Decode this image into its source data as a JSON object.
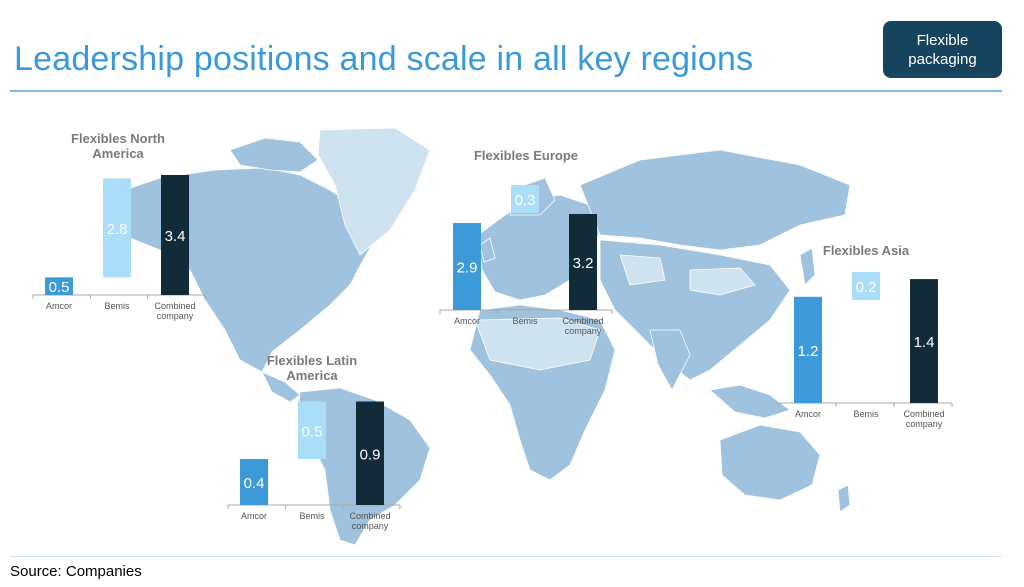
{
  "header": {
    "title": "Leadership positions and scale in all key regions",
    "tag": "Flexible\npackaging"
  },
  "footer": {
    "source": "Source: Companies"
  },
  "colors": {
    "amcor": "#3d9ad8",
    "bemis": "#a9ddf8",
    "combined": "#112b38",
    "map_land": "#9fc2de",
    "map_light": "#cfe2f0",
    "title": "#3a9ad9"
  },
  "chart_data": [
    {
      "type": "bar",
      "title": "Flexibles North America",
      "categories": [
        "Amcor",
        "Bemis",
        "Combined company"
      ],
      "values": [
        0.5,
        2.8,
        3.4
      ]
    },
    {
      "type": "bar",
      "title": "Flexibles Europe",
      "categories": [
        "Amcor",
        "Bemis",
        "Combined company"
      ],
      "values": [
        2.9,
        0.3,
        3.2
      ]
    },
    {
      "type": "bar",
      "title": "Flexibles Latin America",
      "categories": [
        "Amcor",
        "Bemis",
        "Combined company"
      ],
      "values": [
        0.4,
        0.5,
        0.9
      ]
    },
    {
      "type": "bar",
      "title": "Flexibles Asia",
      "categories": [
        "Amcor",
        "Bemis",
        "Combined company"
      ],
      "values": [
        1.2,
        0.2,
        1.4
      ]
    }
  ]
}
